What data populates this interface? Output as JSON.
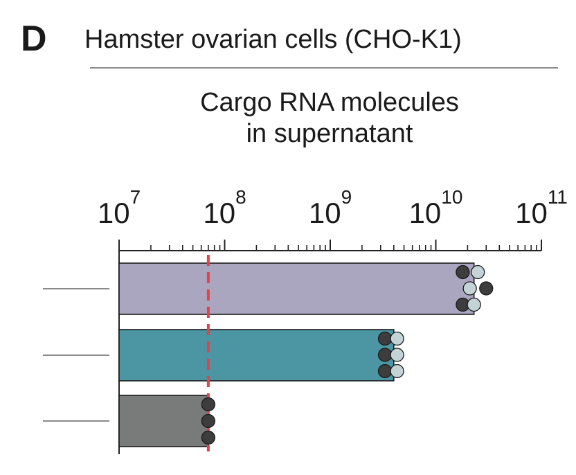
{
  "panel": {
    "letter": "D",
    "title": "Hamster ovarian cells (CHO-K1)"
  },
  "chart_data": {
    "type": "bar",
    "orientation": "horizontal",
    "title_lines": [
      "Cargo RNA molecules",
      "in supernatant"
    ],
    "x_scale": "log",
    "xlim": [
      10000000,
      100000000000
    ],
    "x_ticks": [
      {
        "base": "10",
        "exp": "7"
      },
      {
        "base": "10",
        "exp": "8"
      },
      {
        "base": "10",
        "exp": "9"
      },
      {
        "base": "10",
        "exp": "10"
      },
      {
        "base": "10",
        "exp": "11"
      }
    ],
    "categories": [
      "",
      "",
      ""
    ],
    "series": [
      {
        "values": [
          23000000000,
          4000000000,
          70000000
        ],
        "colors": [
          "#aaa6bf",
          "#4c95a2",
          "#787b7a"
        ],
        "points": [
          [
            {
              "value": 18000000000,
              "shade": "dark"
            },
            {
              "value": 25000000000,
              "shade": "light"
            },
            {
              "value": 21000000000,
              "shade": "light"
            },
            {
              "value": 30000000000,
              "shade": "dark"
            },
            {
              "value": 18000000000,
              "shade": "dark"
            },
            {
              "value": 23000000000,
              "shade": "light"
            }
          ],
          [
            {
              "value": 3300000000,
              "shade": "dark"
            },
            {
              "value": 4300000000,
              "shade": "light"
            },
            {
              "value": 3300000000,
              "shade": "dark"
            },
            {
              "value": 4300000000,
              "shade": "light"
            },
            {
              "value": 3300000000,
              "shade": "dark"
            },
            {
              "value": 4300000000,
              "shade": "light"
            }
          ],
          [
            {
              "value": 70000000,
              "shade": "dark"
            },
            {
              "value": 70000000,
              "shade": "dark"
            },
            {
              "value": 70000000,
              "shade": "dark"
            }
          ]
        ]
      }
    ],
    "threshold": {
      "value": 70000000,
      "color": "#e04349",
      "style": "dashed"
    },
    "point_colors": {
      "dark": "#3d3d3d",
      "light": "#c3d3d6"
    }
  }
}
